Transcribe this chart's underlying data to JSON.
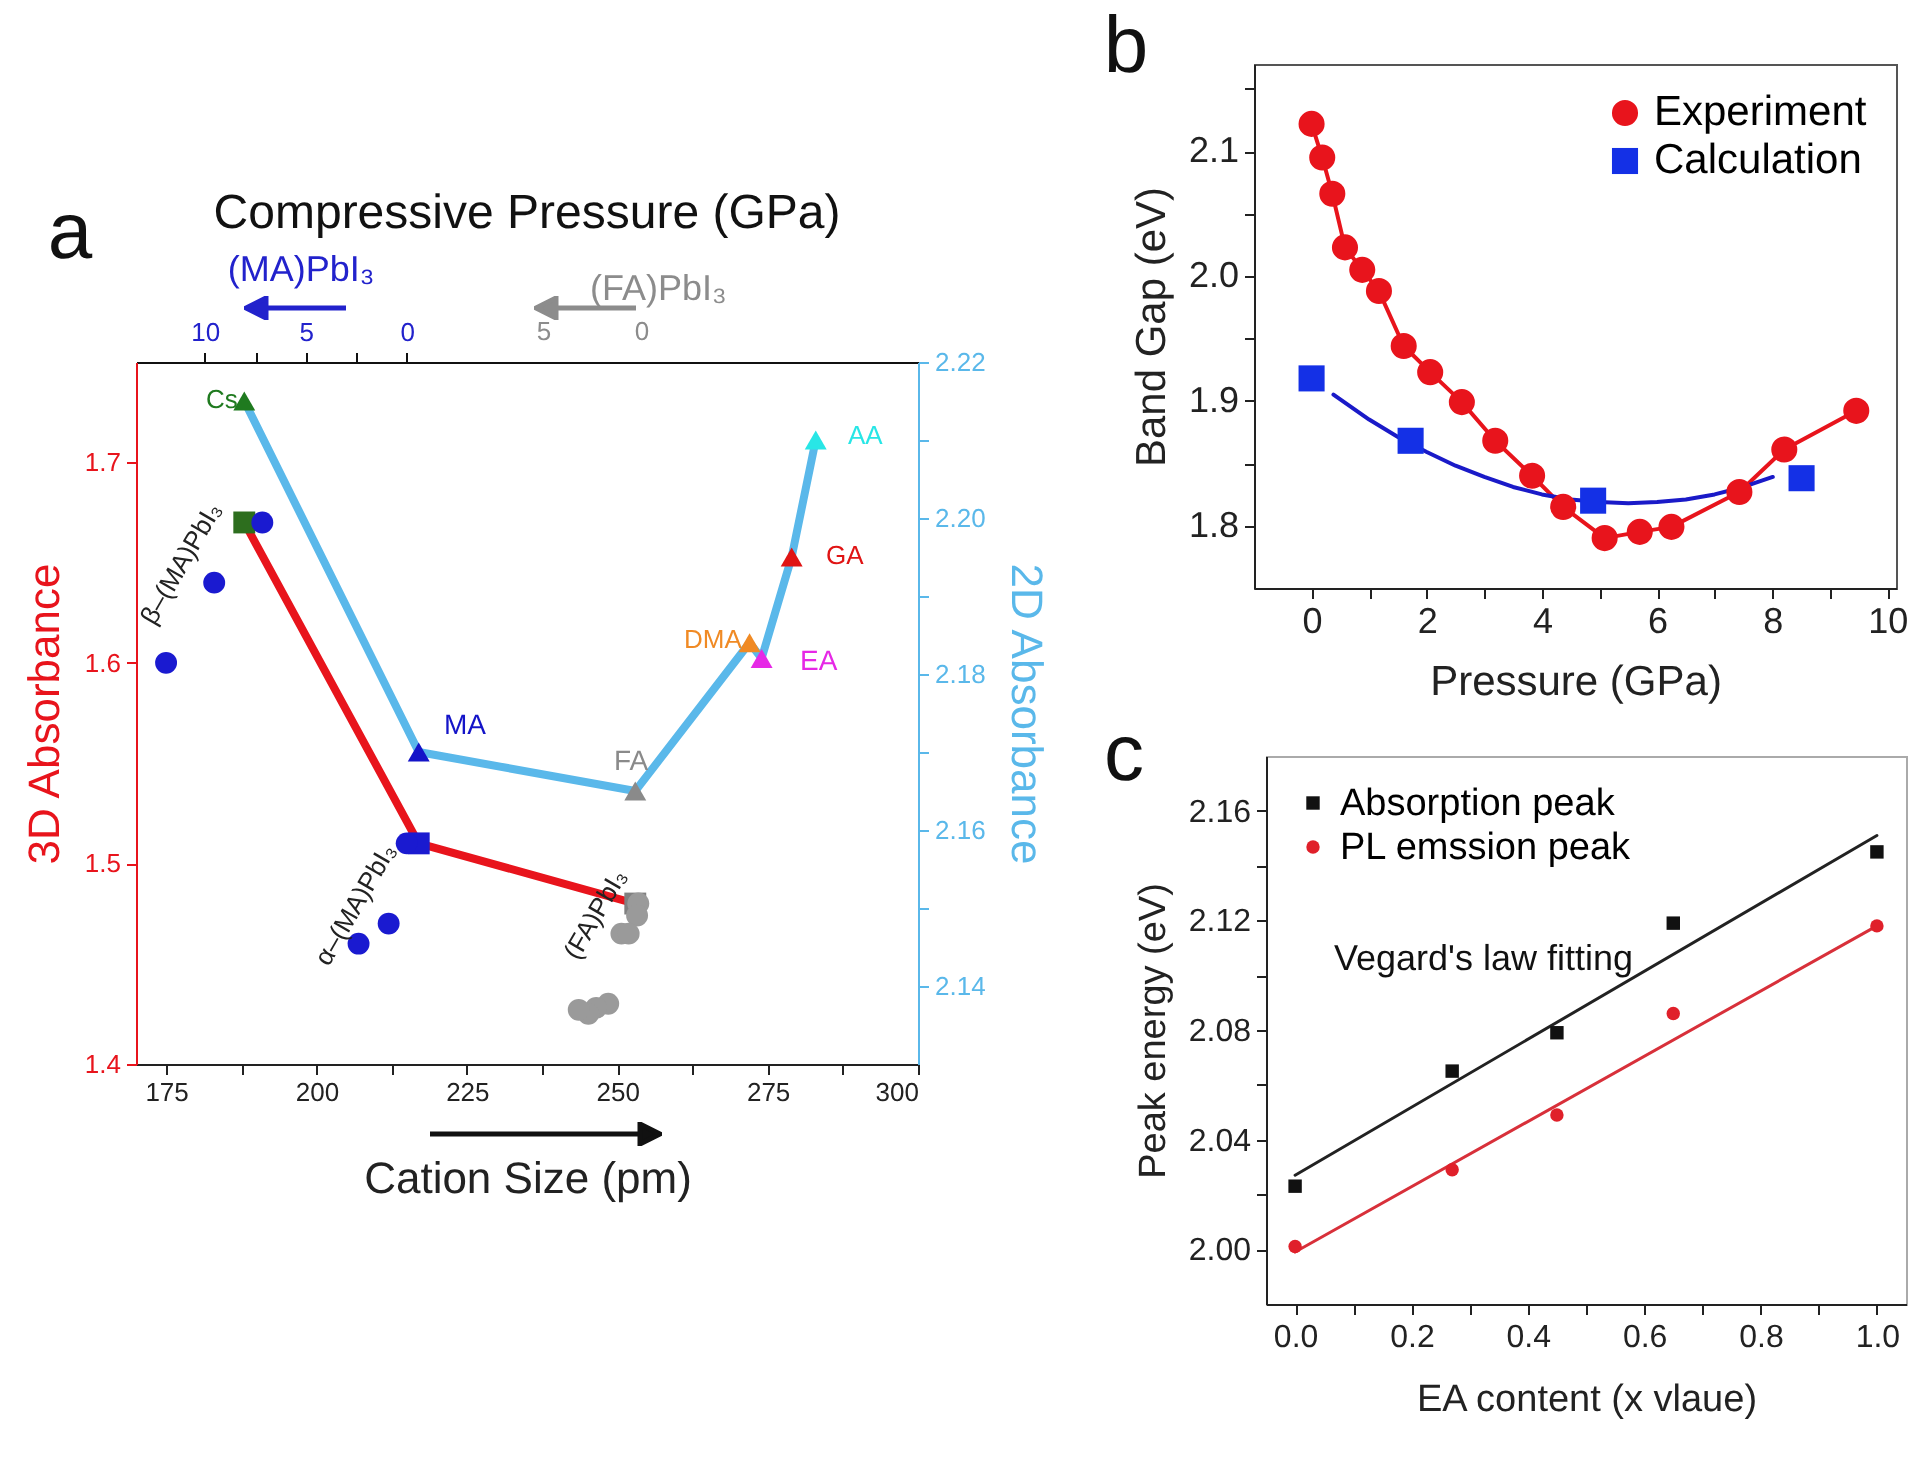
{
  "chart_data": [
    {
      "type": "line",
      "title": "Compressive Pressure (GPa)",
      "xlabel": "Cation Size (pm)",
      "ylabel": "3D Absorbance",
      "y2label": "2D Absorbance",
      "x2label": "(MA)PbI₃",
      "xlim": [
        170,
        300
      ],
      "xticks": [
        175,
        {
          "value": 187.5,
          "label": null
        },
        200,
        {
          "value": 212.5,
          "label": null
        },
        225,
        {
          "value": 237.5,
          "label": null
        },
        250,
        {
          "value": 262.5,
          "label": null
        },
        275,
        {
          "value": 287.5,
          "label": null
        },
        300
      ],
      "ylim": [
        1.4,
        1.75
      ],
      "yticks": [
        1.4,
        1.5,
        1.6,
        1.7
      ],
      "y2lim": [
        2.13,
        2.22
      ],
      "y2ticks": [
        {
          "value": 2.14,
          "label": "2.14"
        },
        {
          "value": 2.15,
          "label": null
        },
        {
          "value": 2.16,
          "label": "2.16"
        },
        {
          "value": 2.17,
          "label": null
        },
        {
          "value": 2.18,
          "label": "2.18"
        },
        {
          "value": 2.19,
          "label": null
        },
        {
          "value": 2.2,
          "label": "2.20"
        },
        {
          "value": 2.21,
          "label": null
        },
        {
          "value": 2.22,
          "label": "2.22"
        }
      ],
      "x2lim": [
        13.4,
        -25.3
      ],
      "x2ticks": [
        10,
        {
          "value": 7.5,
          "label": null
        },
        5,
        {
          "value": 2.5,
          "label": null
        },
        0
      ],
      "series": [
        {
          "color": "#e8141c",
          "marker": "square",
          "x": [
            188,
            217,
            253
          ],
          "values": [
            1.67,
            1.51,
            1.48
          ],
          "colors": [
            "#2d6e1e",
            "#1a1ad0",
            "#808080"
          ]
        },
        {
          "axis": "y2",
          "color": "#5ab8ea",
          "marker": "triangle",
          "x": [
            188,
            217,
            253,
            272,
            274,
            279,
            283
          ],
          "values": [
            2.215,
            2.17,
            2.165,
            2.184,
            2.182,
            2.195,
            2.21
          ],
          "colors": [
            "#1f7a1f",
            "#1414c8",
            "#8a8a8a",
            "#f08a24",
            "#e628e6",
            "#e01414",
            "#28e6e6"
          ]
        },
        {
          "type": "scatter",
          "name": "β–(MA)PbI₃",
          "color": "#1a1ad0",
          "marker": "circle",
          "x": [
            175,
            183,
            191
          ],
          "values": [
            1.6,
            1.64,
            1.67
          ]
        },
        {
          "type": "scatter",
          "name": "α–(MA)PbI₃",
          "color": "#1a1ad0",
          "marker": "circle",
          "x": [
            207,
            212,
            215
          ],
          "values": [
            1.46,
            1.47,
            1.51
          ]
        },
        {
          "type": "scatter",
          "name": "(FA)PbI₃",
          "color": "#9a9a9a",
          "marker": "circle",
          "x": [
            253.5,
            253.3,
            250.7,
            251.9,
            248.5,
            246.5,
            245.2,
            243.6
          ],
          "values": [
            1.48,
            1.474,
            1.465,
            1.465,
            1.43,
            1.428,
            1.425,
            1.427
          ]
        }
      ],
      "annotations": [
        "Cs",
        "MA",
        "FA",
        "DMA",
        "EA",
        "GA",
        "AA",
        "(FA)PbI₃",
        "5",
        "0",
        "a"
      ]
    },
    {
      "type": "line",
      "xlabel": "Pressure (GPa)",
      "ylabel": "Band Gap (eV)",
      "legend": "top right",
      "xlim": [
        -1,
        10.15
      ],
      "xticks": [
        0,
        {
          "value": 1,
          "label": null
        },
        2,
        {
          "value": 3,
          "label": null
        },
        4,
        {
          "value": 5,
          "label": null
        },
        6,
        {
          "value": 7,
          "label": null
        },
        8,
        {
          "value": 9,
          "label": null
        },
        10
      ],
      "ylim": [
        1.75,
        2.17
      ],
      "yticks": [
        {
          "value": 1.8,
          "label": "1.8"
        },
        {
          "value": 1.85,
          "label": null
        },
        {
          "value": 1.9,
          "label": "1.9"
        },
        {
          "value": 1.95,
          "label": null
        },
        {
          "value": 2.0,
          "label": "2.0"
        },
        {
          "value": 2.05,
          "label": null
        },
        {
          "value": 2.1,
          "label": "2.1"
        },
        {
          "value": 2.15,
          "label": null
        }
      ],
      "series": [
        {
          "name": "Experiment",
          "color": "#e8141c",
          "marker": "circle",
          "x": [
            0,
            0.185,
            0.36,
            0.58,
            0.88,
            1.17,
            1.6,
            2.06,
            2.61,
            3.19,
            3.83,
            4.37,
            5.09,
            5.7,
            6.25,
            7.43,
            8.21,
            9.46
          ],
          "values": [
            2.122,
            2.095,
            2.066,
            2.023,
            2.005,
            1.988,
            1.944,
            1.923,
            1.899,
            1.868,
            1.84,
            1.815,
            1.79,
            1.795,
            1.799,
            1.827,
            1.861,
            1.892
          ]
        },
        {
          "name": "Calculation",
          "type": "scatter",
          "color": "#1430e6",
          "marker": "square",
          "x": [
            0,
            1.72,
            4.89,
            8.51
          ],
          "values": [
            1.918,
            1.868,
            1.82,
            1.838
          ]
        },
        {
          "color": "#1a1ac8",
          "x": [
            0.38,
            1,
            1.5,
            2,
            2.5,
            3,
            3.5,
            4,
            4.5,
            5,
            5.5,
            6,
            6.5,
            7,
            7.5,
            8.01
          ],
          "values": [
            1.905,
            1.885,
            1.871,
            1.859,
            1.848,
            1.839,
            1.831,
            1.825,
            1.821,
            1.819,
            1.818,
            1.819,
            1.821,
            1.825,
            1.831,
            1.839
          ]
        }
      ],
      "annotations": [
        "b"
      ]
    },
    {
      "type": "scatter",
      "xlabel": "EA content (x vlaue)",
      "ylabel": "Peak energy (eV)",
      "legend": "top left",
      "xlim": [
        -0.05,
        1.05
      ],
      "xticks": [
        {
          "value": 0,
          "label": "0.0"
        },
        {
          "value": 0.1,
          "label": null
        },
        {
          "value": 0.2,
          "label": "0.2"
        },
        {
          "value": 0.3,
          "label": null
        },
        {
          "value": 0.4,
          "label": "0.4"
        },
        {
          "value": 0.5,
          "label": null
        },
        {
          "value": 0.6,
          "label": "0.6"
        },
        {
          "value": 0.7,
          "label": null
        },
        {
          "value": 0.8,
          "label": "0.8"
        },
        {
          "value": 0.9,
          "label": null
        },
        {
          "value": 1,
          "label": "1.0"
        }
      ],
      "ylim": [
        1.98,
        2.18
      ],
      "yticks": [
        {
          "value": 2.0,
          "label": "2.00"
        },
        {
          "value": 2.02,
          "label": null
        },
        {
          "value": 2.04,
          "label": "2.04"
        },
        {
          "value": 2.06,
          "label": null
        },
        {
          "value": 2.08,
          "label": "2.08"
        },
        {
          "value": 2.1,
          "label": null
        },
        {
          "value": 2.12,
          "label": "2.12"
        },
        {
          "value": 2.14,
          "label": null
        },
        {
          "value": 2.16,
          "label": "2.16"
        }
      ],
      "series": [
        {
          "name": "Absorption peak",
          "color": "#111111",
          "marker": "square",
          "x": [
            0,
            0.27,
            0.45,
            0.65,
            1.0
          ],
          "values": [
            2.023,
            2.065,
            2.079,
            2.119,
            2.145
          ]
        },
        {
          "name": "PL emssion peak",
          "color": "#e0202a",
          "marker": "circle",
          "x": [
            0,
            0.27,
            0.45,
            0.65,
            1.0
          ],
          "values": [
            2.001,
            2.029,
            2.049,
            2.086,
            2.118
          ]
        },
        {
          "type": "line",
          "color": "#222222",
          "x": [
            0,
            1
          ],
          "values": [
            2.027,
            2.151
          ]
        },
        {
          "type": "line",
          "color": "#d8303a",
          "x": [
            0,
            1
          ],
          "values": [
            1.999,
            2.118
          ]
        }
      ],
      "annotations": [
        "c",
        "Vegard's law fitting"
      ]
    }
  ]
}
